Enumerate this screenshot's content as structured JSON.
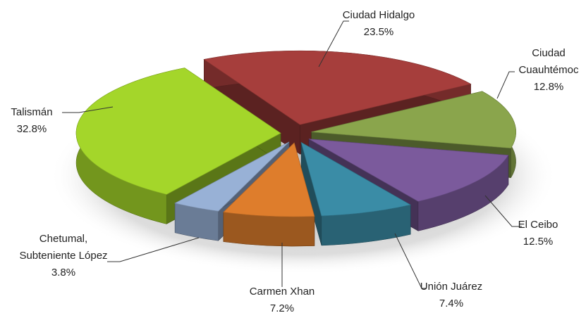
{
  "chart_data": {
    "type": "pie3d",
    "categories": [
      "Ciudad Hidalgo",
      "Ciudad\nCuauhtémoc",
      "El Ceibo",
      "Unión Juárez",
      "Carmen Xhan",
      "Chetumal,\nSubteniente López",
      "Talismán"
    ],
    "values": [
      23.5,
      12.8,
      12.5,
      7.4,
      7.2,
      3.8,
      32.8
    ],
    "value_labels": [
      "23.5%",
      "12.8%",
      "12.5%",
      "7.4%",
      "7.2%",
      "3.8%",
      "32.8%"
    ],
    "colors": [
      "#a63e3c",
      "#8aa54c",
      "#7b5a9c",
      "#3a8ca6",
      "#de7d2c",
      "#98b1d6",
      "#a4d62a"
    ]
  }
}
